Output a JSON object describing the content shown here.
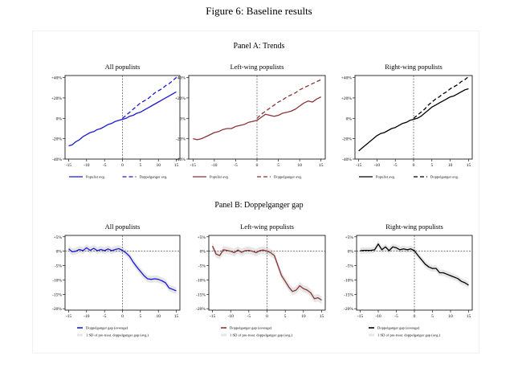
{
  "figure": {
    "title": "Figure 6:   Baseline results"
  },
  "panels": [
    {
      "title": "Panel A: Trends"
    },
    {
      "title": "Panel B: Doppelganger gap"
    }
  ],
  "chart_data": [
    {
      "type": "line",
      "panel": "A",
      "title": "All populists",
      "color": "#1a1ad6",
      "xlim": [
        -16,
        16
      ],
      "ylim": [
        -40,
        42
      ],
      "xticks": [
        -15,
        -10,
        -5,
        0,
        5,
        10,
        15
      ],
      "yticks": [
        -40,
        -20,
        0,
        20,
        40
      ],
      "ytick_labels": [
        "-40%",
        "-20%",
        "0%",
        "+20%",
        "+40%"
      ],
      "vline_x": 0,
      "series": [
        {
          "name": "Populist avg.",
          "style": "solid",
          "x": [
            -15,
            -14,
            -13,
            -12,
            -11,
            -10,
            -9,
            -8,
            -7,
            -6,
            -5,
            -4,
            -3,
            -2,
            -1,
            0,
            1,
            2,
            3,
            4,
            5,
            6,
            7,
            8,
            9,
            10,
            11,
            12,
            13,
            14,
            15
          ],
          "y": [
            -27,
            -26,
            -23,
            -21,
            -18,
            -16,
            -14,
            -13,
            -11,
            -10,
            -8,
            -6,
            -5,
            -3,
            -2,
            -1,
            0,
            2,
            3,
            5,
            6,
            8,
            10,
            12,
            14,
            16,
            18,
            20,
            22,
            24,
            26
          ]
        },
        {
          "name": "Doppelganger avg.",
          "style": "dashed",
          "x": [
            0,
            1,
            2,
            3,
            4,
            5,
            6,
            7,
            8,
            9,
            10,
            11,
            12,
            13,
            14,
            15
          ],
          "y": [
            0,
            3,
            6,
            9,
            12,
            15,
            17,
            19,
            22,
            25,
            27,
            29,
            32,
            34,
            37,
            40
          ]
        }
      ],
      "legend": [
        "Populist avg.",
        "Doppelganger avg."
      ]
    },
    {
      "type": "line",
      "panel": "A",
      "title": "Left-wing populists",
      "color": "#8b3535",
      "xlim": [
        -16,
        16
      ],
      "ylim": [
        -40,
        42
      ],
      "xticks": [
        -15,
        -10,
        -5,
        0,
        5,
        10,
        15
      ],
      "yticks": [
        -40,
        -20,
        0,
        20,
        40
      ],
      "ytick_labels": [
        "-40%",
        "-20%",
        "0%",
        "+20%",
        "+40%"
      ],
      "vline_x": 0,
      "series": [
        {
          "name": "Populist avg.",
          "style": "solid",
          "x": [
            -15,
            -14,
            -13,
            -12,
            -11,
            -10,
            -9,
            -8,
            -7,
            -6,
            -5,
            -4,
            -3,
            -2,
            -1,
            0,
            1,
            2,
            3,
            4,
            5,
            6,
            7,
            8,
            9,
            10,
            11,
            12,
            13,
            14,
            15
          ],
          "y": [
            -20,
            -21,
            -20,
            -18,
            -16,
            -14,
            -13,
            -11,
            -10,
            -10,
            -8,
            -7,
            -6,
            -4,
            -3,
            -2,
            1,
            4,
            3,
            2,
            3,
            5,
            6,
            7,
            9,
            12,
            15,
            17,
            16,
            19,
            21
          ]
        },
        {
          "name": "Doppelganger avg.",
          "style": "dashed",
          "x": [
            0,
            1,
            2,
            3,
            4,
            5,
            6,
            7,
            8,
            9,
            10,
            11,
            12,
            13,
            14,
            15
          ],
          "y": [
            0,
            4,
            7,
            10,
            13,
            16,
            18,
            21,
            23,
            25,
            28,
            30,
            32,
            34,
            36,
            38
          ]
        }
      ],
      "legend": [
        "Populist avg.",
        "Doppelganger avg."
      ]
    },
    {
      "type": "line",
      "panel": "A",
      "title": "Right-wing populists",
      "color": "#000000",
      "xlim": [
        -16,
        16
      ],
      "ylim": [
        -40,
        42
      ],
      "xticks": [
        -15,
        -10,
        -5,
        0,
        5,
        10,
        15
      ],
      "yticks": [
        -40,
        -20,
        0,
        20,
        40
      ],
      "ytick_labels": [
        "-40%",
        "-20%",
        "0%",
        "+20%",
        "+40%"
      ],
      "vline_x": 0,
      "series": [
        {
          "name": "Populist avg.",
          "style": "solid",
          "x": [
            -15,
            -14,
            -13,
            -12,
            -11,
            -10,
            -9,
            -8,
            -7,
            -6,
            -5,
            -4,
            -3,
            -2,
            -1,
            0,
            1,
            2,
            3,
            4,
            5,
            6,
            7,
            8,
            9,
            10,
            11,
            12,
            13,
            14,
            15
          ],
          "y": [
            -32,
            -29,
            -26,
            -23,
            -20,
            -17,
            -15,
            -14,
            -12,
            -10,
            -9,
            -7,
            -5,
            -4,
            -2,
            -1,
            0,
            2,
            5,
            8,
            11,
            13,
            15,
            17,
            19,
            21,
            22,
            24,
            26,
            28,
            29
          ]
        },
        {
          "name": "Doppelganger avg.",
          "style": "dashed",
          "x": [
            0,
            1,
            2,
            3,
            4,
            5,
            6,
            7,
            8,
            9,
            10,
            11,
            12,
            13,
            14,
            15
          ],
          "y": [
            0,
            3,
            6,
            9,
            13,
            16,
            19,
            21,
            24,
            26,
            29,
            31,
            33,
            36,
            38,
            41
          ]
        }
      ],
      "legend": [
        "Populist avg.",
        "Doppelganger avg."
      ]
    },
    {
      "type": "line",
      "panel": "B",
      "title": "All populists",
      "color": "#1a1ad6",
      "xlim": [
        -16,
        16
      ],
      "ylim": [
        -20.5,
        5.5
      ],
      "xticks": [
        -15,
        -10,
        -5,
        0,
        5,
        10,
        15
      ],
      "yticks": [
        5,
        0,
        -5,
        -10,
        -15,
        -20
      ],
      "ytick_labels": [
        "+5%",
        "0%",
        "-5%",
        "-10%",
        "-15%",
        "-20%"
      ],
      "vline_x": 0,
      "hline_y": 0,
      "series": [
        {
          "name": "Doppelganger gap (average)",
          "style": "solid",
          "x": [
            -15,
            -14,
            -13,
            -12,
            -11,
            -10,
            -9,
            -8,
            -7,
            -6,
            -5,
            -4,
            -3,
            -2,
            -1,
            0,
            1,
            2,
            3,
            4,
            5,
            6,
            7,
            8,
            9,
            10,
            11,
            12,
            13,
            14,
            15
          ],
          "y": [
            0.8,
            -0.2,
            0,
            0.6,
            0.2,
            1.2,
            0.3,
            1.0,
            0.2,
            0.6,
            0.2,
            0.8,
            0.2,
            0.6,
            0.9,
            0.3,
            -0.6,
            -1.8,
            -3.8,
            -5.5,
            -7.0,
            -8.5,
            -9.6,
            -9.8,
            -9.6,
            -9.8,
            -10.3,
            -11.0,
            -12.8,
            -13.3,
            -13.8
          ]
        },
        {
          "name": "1 SD of pre-treat. doppelganger gap (avg.)",
          "style": "band",
          "sd": 1.2
        }
      ],
      "legend": [
        "Doppelganger gap (average)",
        "1 SD of pre-treat. doppelganger gap (avg.)"
      ]
    },
    {
      "type": "line",
      "panel": "B",
      "title": "Left-wing populists",
      "color": "#8b3535",
      "xlim": [
        -16,
        16
      ],
      "ylim": [
        -20.5,
        5.5
      ],
      "xticks": [
        -15,
        -10,
        -5,
        0,
        5,
        10,
        15
      ],
      "yticks": [
        5,
        0,
        -5,
        -10,
        -15,
        -20
      ],
      "ytick_labels": [
        "+5%",
        "0%",
        "-5%",
        "-10%",
        "-15%",
        "-20%"
      ],
      "vline_x": 0,
      "hline_y": 0,
      "series": [
        {
          "name": "Doppelganger gap (average)",
          "style": "solid",
          "x": [
            -15,
            -14,
            -13,
            -12,
            -11,
            -10,
            -9,
            -8,
            -7,
            -6,
            -5,
            -4,
            -3,
            -2,
            -1,
            0,
            1,
            2,
            3,
            4,
            5,
            6,
            7,
            8,
            9,
            10,
            11,
            12,
            13,
            14,
            15
          ],
          "y": [
            1.8,
            -1.0,
            -1.5,
            0.5,
            0.3,
            0,
            -0.5,
            0.4,
            -0.4,
            0.2,
            0.3,
            0,
            -0.5,
            0.2,
            0.4,
            0,
            -0.5,
            -1.5,
            -5.0,
            -8.5,
            -10.5,
            -12.5,
            -14.0,
            -13.5,
            -12.0,
            -13.0,
            -13.5,
            -14.5,
            -16.5,
            -16.2,
            -17.0
          ]
        },
        {
          "name": "1 SD of pre-treat. doppelganger gap (avg.)",
          "style": "band",
          "sd": 1.3
        }
      ],
      "legend": [
        "Doppelganger gap (average)",
        "1 SD of pre-treat. doppelganger gap (avg.)"
      ]
    },
    {
      "type": "line",
      "panel": "B",
      "title": "Right-wing populists",
      "color": "#000000",
      "xlim": [
        -16,
        16
      ],
      "ylim": [
        -20.5,
        5.5
      ],
      "xticks": [
        -15,
        -10,
        -5,
        0,
        5,
        10,
        15
      ],
      "yticks": [
        5,
        0,
        -5,
        -10,
        -15,
        -20
      ],
      "ytick_labels": [
        "+5%",
        "0%",
        "-5%",
        "-10%",
        "-15%",
        "-20%"
      ],
      "vline_x": 0,
      "hline_y": 0,
      "series": [
        {
          "name": "Doppelganger gap (average)",
          "style": "solid",
          "x": [
            -15,
            -14,
            -13,
            -12,
            -11,
            -10,
            -9,
            -8,
            -7,
            -6,
            -5,
            -4,
            -3,
            -2,
            -1,
            0,
            1,
            2,
            3,
            4,
            5,
            6,
            7,
            8,
            9,
            10,
            11,
            12,
            13,
            14,
            15
          ],
          "y": [
            0.2,
            0.3,
            0.3,
            0.3,
            0.5,
            2.5,
            0.5,
            1.5,
            0.2,
            1.5,
            1.2,
            0.5,
            0.8,
            0.5,
            0.8,
            0.2,
            -1.5,
            -3.0,
            -4.5,
            -5.5,
            -6.0,
            -6.0,
            -7.5,
            -7.5,
            -8.0,
            -8.5,
            -9.0,
            -9.5,
            -10.5,
            -11.0,
            -11.8
          ]
        },
        {
          "name": "1 SD of pre-treat. doppelganger gap (avg.)",
          "style": "band",
          "sd": 1.1
        }
      ],
      "legend": [
        "Doppelganger gap (average)",
        "1 SD of pre-treat. doppelganger gap (avg.)"
      ]
    }
  ]
}
